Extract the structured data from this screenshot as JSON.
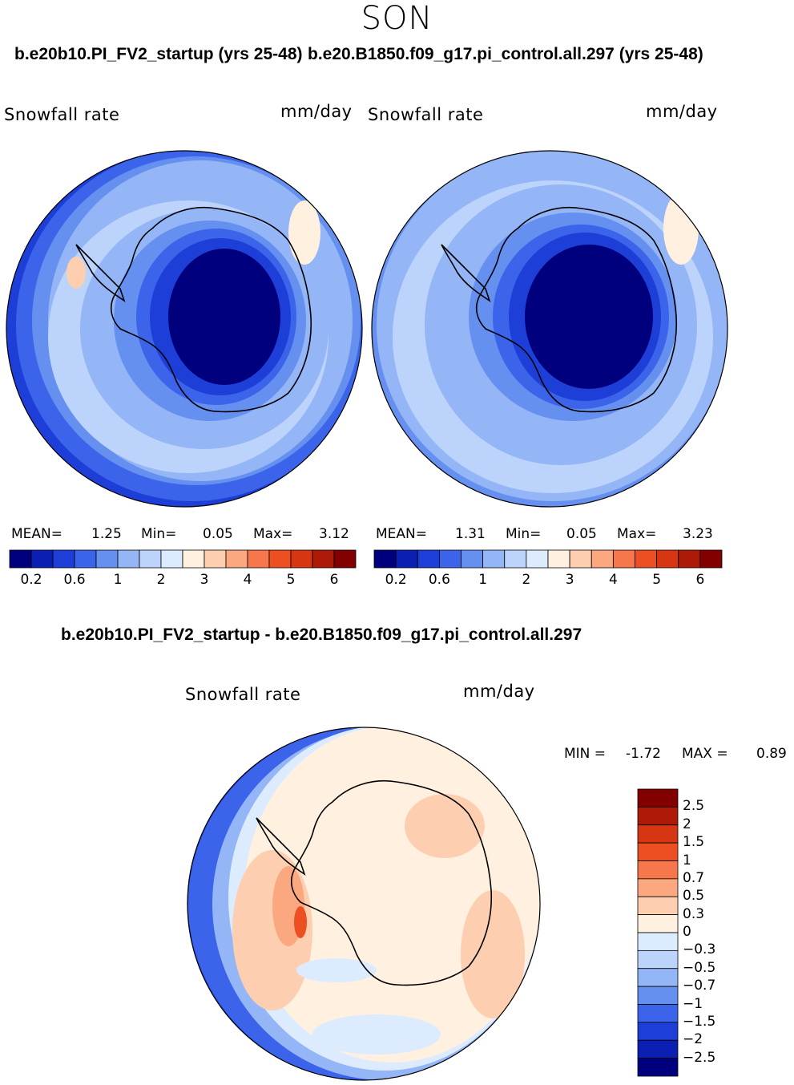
{
  "season": "SON",
  "titles": {
    "case1": "b.e20b10.PI_FV2_startup (yrs 25-48)",
    "case2": "b.e20.B1850.f09_g17.pi_control.all.297 (yrs 25-48)",
    "diff": "b.e20b10.PI_FV2_startup - b.e20.B1850.f09_g17.pi_control.all.297"
  },
  "panels": [
    {
      "variable": "Snowfall rate",
      "units": "mm/day",
      "mean_label": "MEAN=",
      "mean": "1.25",
      "min_label": "Min=",
      "min": "0.05",
      "max_label": "Max=",
      "max": "3.12"
    },
    {
      "variable": "Snowfall rate",
      "units": "mm/day",
      "mean_label": "MEAN=",
      "mean": "1.31",
      "min_label": "Min=",
      "min": "0.05",
      "max_label": "Max=",
      "max": "3.23"
    }
  ],
  "diff_panel": {
    "variable": "Snowfall rate",
    "units": "mm/day",
    "min_label": "MIN =",
    "min": "-1.72",
    "max_label": "MAX =",
    "max": "0.89"
  },
  "colorbar_top": {
    "ticks": [
      "0.2",
      "0.6",
      "1",
      "2",
      "3",
      "4",
      "5",
      "6"
    ],
    "colors": [
      "#00007e",
      "#0b1fb3",
      "#1d3fd8",
      "#3b64ea",
      "#6690f0",
      "#94b6f6",
      "#bcd3fb",
      "#dcebfd",
      "#fff0e0",
      "#fdcfb0",
      "#fba77f",
      "#f7774c",
      "#ec4f22",
      "#d63611",
      "#ad1a07",
      "#820000"
    ]
  },
  "colorbar_diff": {
    "ticks": [
      "2.5",
      "2",
      "1.5",
      "1",
      "0.7",
      "0.5",
      "0.3",
      "0",
      "−0.3",
      "−0.5",
      "−0.7",
      "−1",
      "−1.5",
      "−2",
      "−2.5"
    ],
    "colors": [
      "#820000",
      "#ad1a07",
      "#d63611",
      "#ec4f22",
      "#f7774c",
      "#fba77f",
      "#fdcfb0",
      "#fff0e0",
      "#dcebfd",
      "#bcd3fb",
      "#94b6f6",
      "#6690f0",
      "#3b64ea",
      "#1d3fd8",
      "#0b1fb3",
      "#00007e"
    ]
  }
}
